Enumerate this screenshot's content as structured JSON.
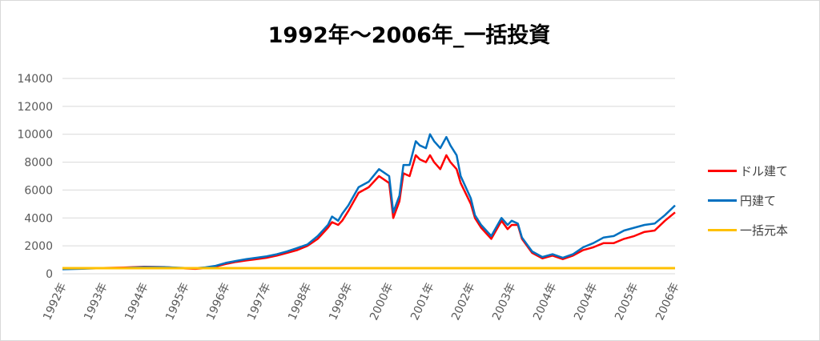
{
  "chart_data": {
    "type": "line",
    "title": "1992年～2006年_一括投資",
    "xlabel": "",
    "ylabel": "",
    "ylim": [
      0,
      14000
    ],
    "y_ticks": [
      0,
      2000,
      4000,
      6000,
      8000,
      10000,
      12000,
      14000
    ],
    "x_tick_labels": [
      "1992年",
      "1993年",
      "1994年",
      "1995年",
      "1996年",
      "1997年",
      "1998年",
      "1999年",
      "2000年",
      "2001年",
      "2002年",
      "2003年",
      "2004年",
      "2004年",
      "2005年",
      "2006年"
    ],
    "x": [
      1992.0,
      1992.5,
      1993.0,
      1993.5,
      1994.0,
      1994.5,
      1995.0,
      1995.25,
      1995.5,
      1995.75,
      1996.0,
      1996.25,
      1996.5,
      1996.75,
      1997.0,
      1997.25,
      1997.5,
      1997.75,
      1998.0,
      1998.25,
      1998.5,
      1998.6,
      1998.75,
      1998.85,
      1999.0,
      1999.25,
      1999.5,
      1999.75,
      2000.0,
      2000.1,
      2000.25,
      2000.35,
      2000.5,
      2000.65,
      2000.75,
      2000.9,
      2001.0,
      2001.1,
      2001.25,
      2001.4,
      2001.5,
      2001.65,
      2001.75,
      2002.0,
      2002.1,
      2002.25,
      2002.5,
      2002.75,
      2002.9,
      2003.0,
      2003.15,
      2003.25,
      2003.5,
      2003.75,
      2004.0,
      2004.25,
      2004.5,
      2004.75,
      2005.0,
      2005.25,
      2005.5,
      2005.75,
      2006.0,
      2006.25,
      2006.5,
      2006.75,
      2007.0
    ],
    "series": [
      {
        "name": "ドル建て",
        "color": "#ff0000",
        "values": [
          350,
          380,
          420,
          450,
          500,
          480,
          380,
          350,
          400,
          520,
          700,
          850,
          950,
          1050,
          1150,
          1300,
          1500,
          1700,
          2000,
          2500,
          3300,
          3700,
          3500,
          3800,
          4500,
          5800,
          6200,
          7000,
          6500,
          4000,
          5200,
          7200,
          7000,
          8500,
          8200,
          8000,
          8500,
          8000,
          7500,
          8500,
          8000,
          7500,
          6500,
          5000,
          4000,
          3300,
          2500,
          3800,
          3200,
          3500,
          3500,
          2500,
          1500,
          1100,
          1300,
          1050,
          1300,
          1700,
          1900,
          2200,
          2200,
          2500,
          2700,
          3000,
          3100,
          3800,
          4400
        ]
      },
      {
        "name": "円建て",
        "color": "#0070c0",
        "values": [
          320,
          360,
          400,
          420,
          480,
          470,
          420,
          400,
          460,
          570,
          780,
          920,
          1050,
          1150,
          1250,
          1400,
          1600,
          1850,
          2100,
          2700,
          3500,
          4100,
          3800,
          4300,
          4900,
          6200,
          6600,
          7500,
          7000,
          4400,
          5600,
          7800,
          7800,
          9500,
          9200,
          9000,
          10000,
          9500,
          9000,
          9800,
          9200,
          8500,
          7000,
          5400,
          4200,
          3500,
          2700,
          4000,
          3500,
          3800,
          3600,
          2600,
          1600,
          1200,
          1400,
          1150,
          1400,
          1900,
          2200,
          2600,
          2700,
          3100,
          3300,
          3500,
          3600,
          4200,
          4900
        ]
      },
      {
        "name": "一括元本",
        "color": "#ffc000",
        "values": [
          400,
          400,
          400,
          400,
          400,
          400,
          400,
          400,
          400,
          400,
          400,
          400,
          400,
          400,
          400,
          400,
          400,
          400,
          400,
          400,
          400,
          400,
          400,
          400,
          400,
          400,
          400,
          400,
          400,
          400,
          400,
          400,
          400,
          400,
          400,
          400,
          400,
          400,
          400,
          400,
          400,
          400,
          400,
          400,
          400,
          400,
          400,
          400,
          400,
          400,
          400,
          400,
          400,
          400,
          400,
          400,
          400,
          400,
          400,
          400,
          400,
          400,
          400,
          400,
          400,
          400,
          400
        ]
      }
    ],
    "grid": true,
    "legend": "right"
  }
}
